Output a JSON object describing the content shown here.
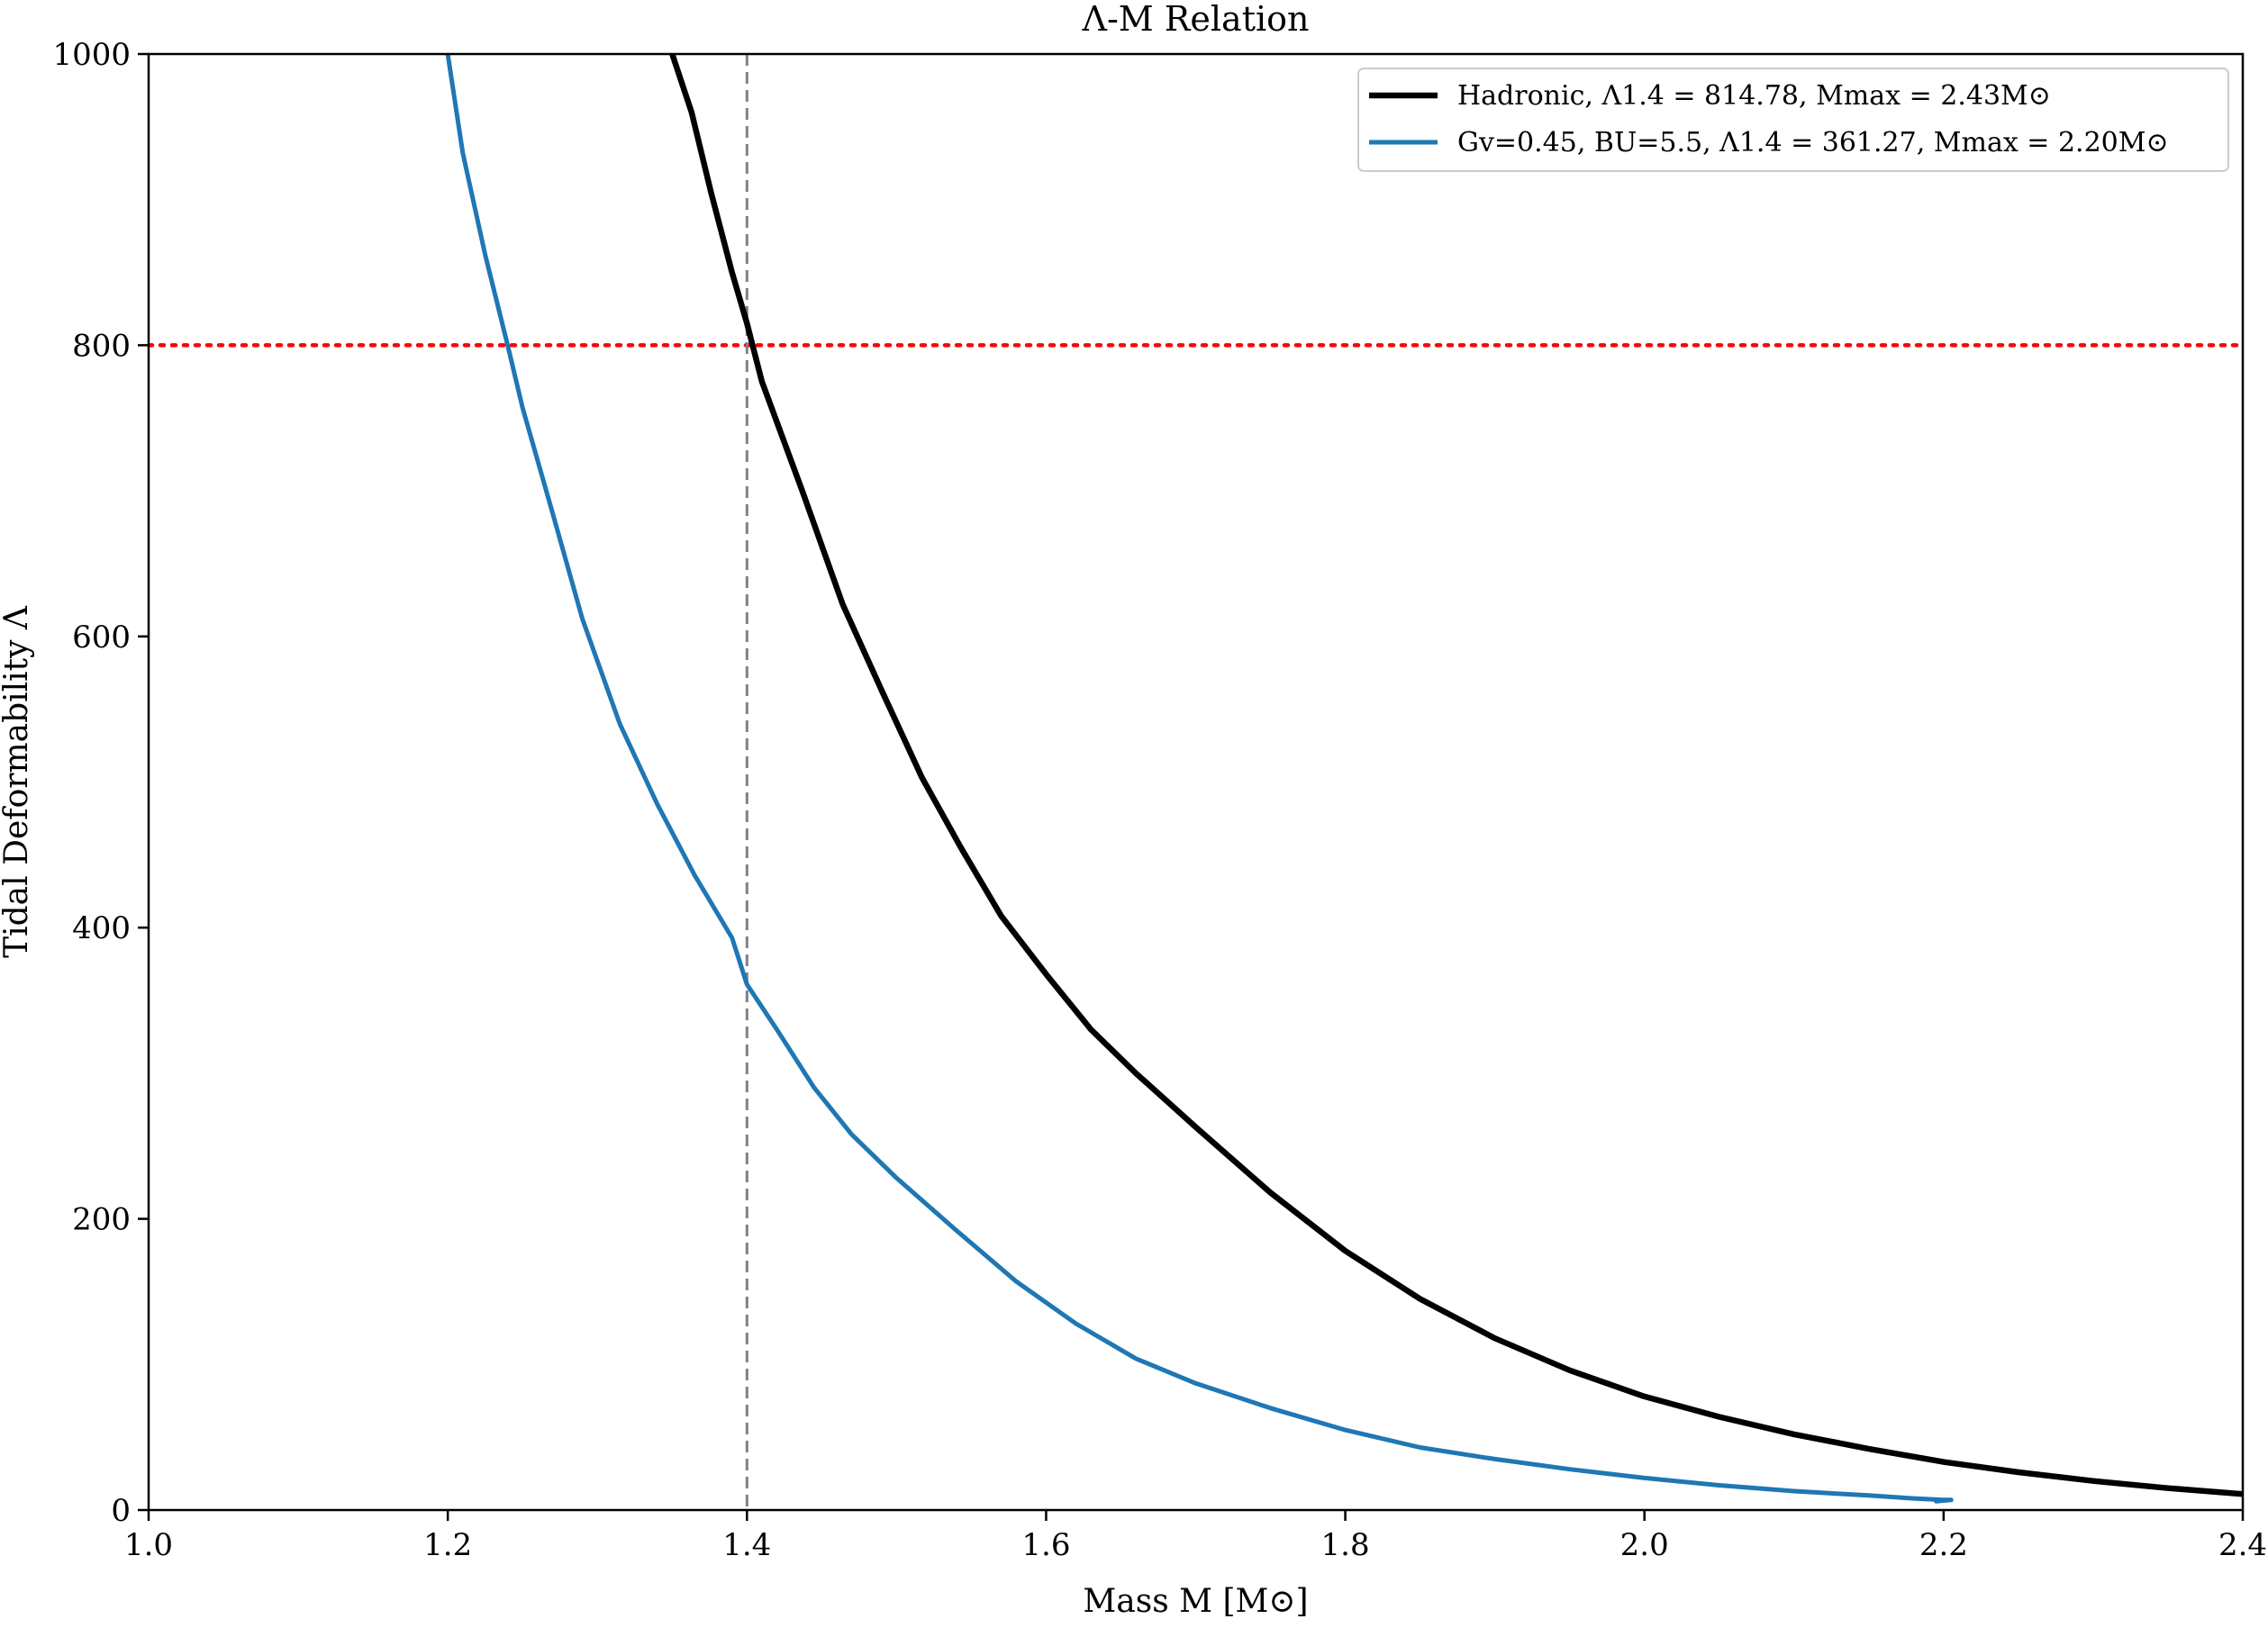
{
  "chart_data": {
    "type": "line",
    "title": "Λ-M Relation",
    "xlabel": "Mass M [M⊙]",
    "ylabel": "Tidal Deformability Λ",
    "xlim": [
      1.0,
      2.4
    ],
    "ylim": [
      0,
      1000
    ],
    "xticks": [
      1.0,
      1.2,
      1.4,
      1.6,
      1.8,
      2.0,
      2.2,
      2.4
    ],
    "xtick_labels": [
      "1.0",
      "1.2",
      "1.4",
      "1.6",
      "1.8",
      "2.0",
      "2.2",
      "2.4"
    ],
    "yticks": [
      0,
      200,
      400,
      600,
      800,
      1000
    ],
    "ytick_labels": [
      "0",
      "200",
      "400",
      "600",
      "800",
      "1000"
    ],
    "grid": false,
    "legend_position": "top-right",
    "series": [
      {
        "name": "Hadronic, Λ1.4 = 814.78, Mmax = 2.43M⊙",
        "color": "#000000",
        "x": [
          1.35,
          1.363,
          1.376,
          1.39,
          1.4,
          1.41,
          1.437,
          1.464,
          1.49,
          1.517,
          1.543,
          1.57,
          1.6,
          1.63,
          1.66,
          1.7,
          1.75,
          1.8,
          1.85,
          1.9,
          1.95,
          2.0,
          2.05,
          2.1,
          2.15,
          2.2,
          2.25,
          2.3,
          2.35,
          2.4
        ],
        "y": [
          1000,
          960,
          905,
          850,
          815,
          775,
          700,
          622,
          563,
          503,
          455,
          408,
          368,
          330,
          300,
          263,
          218,
          178,
          145,
          118,
          96,
          78,
          64,
          52,
          42,
          33,
          26,
          20,
          15,
          11
        ]
      },
      {
        "name": "Gv=0.45, BU=5.5, Λ1.4 = 361.27, Mmax = 2.20M⊙",
        "color": "#1f77b4",
        "x": [
          1.2,
          1.21,
          1.225,
          1.24,
          1.25,
          1.27,
          1.29,
          1.315,
          1.34,
          1.365,
          1.39,
          1.4,
          1.42,
          1.445,
          1.47,
          1.5,
          1.54,
          1.58,
          1.62,
          1.66,
          1.7,
          1.75,
          1.8,
          1.85,
          1.9,
          1.95,
          2.0,
          2.05,
          2.1,
          2.15,
          2.18,
          2.2,
          2.205,
          2.195
        ],
        "y": [
          1000,
          932,
          862,
          800,
          757,
          685,
          612,
          540,
          485,
          436,
          393,
          361,
          330,
          290,
          258,
          228,
          192,
          157,
          128,
          104,
          87,
          70,
          55,
          43,
          35,
          28,
          22,
          17,
          13,
          10,
          8,
          7,
          7,
          6
        ]
      }
    ],
    "reference_lines": [
      {
        "orientation": "horizontal",
        "value": 800,
        "color": "#ff0000",
        "style": "dotted"
      },
      {
        "orientation": "vertical",
        "value": 1.4,
        "color": "#808080",
        "style": "dashed"
      }
    ]
  }
}
